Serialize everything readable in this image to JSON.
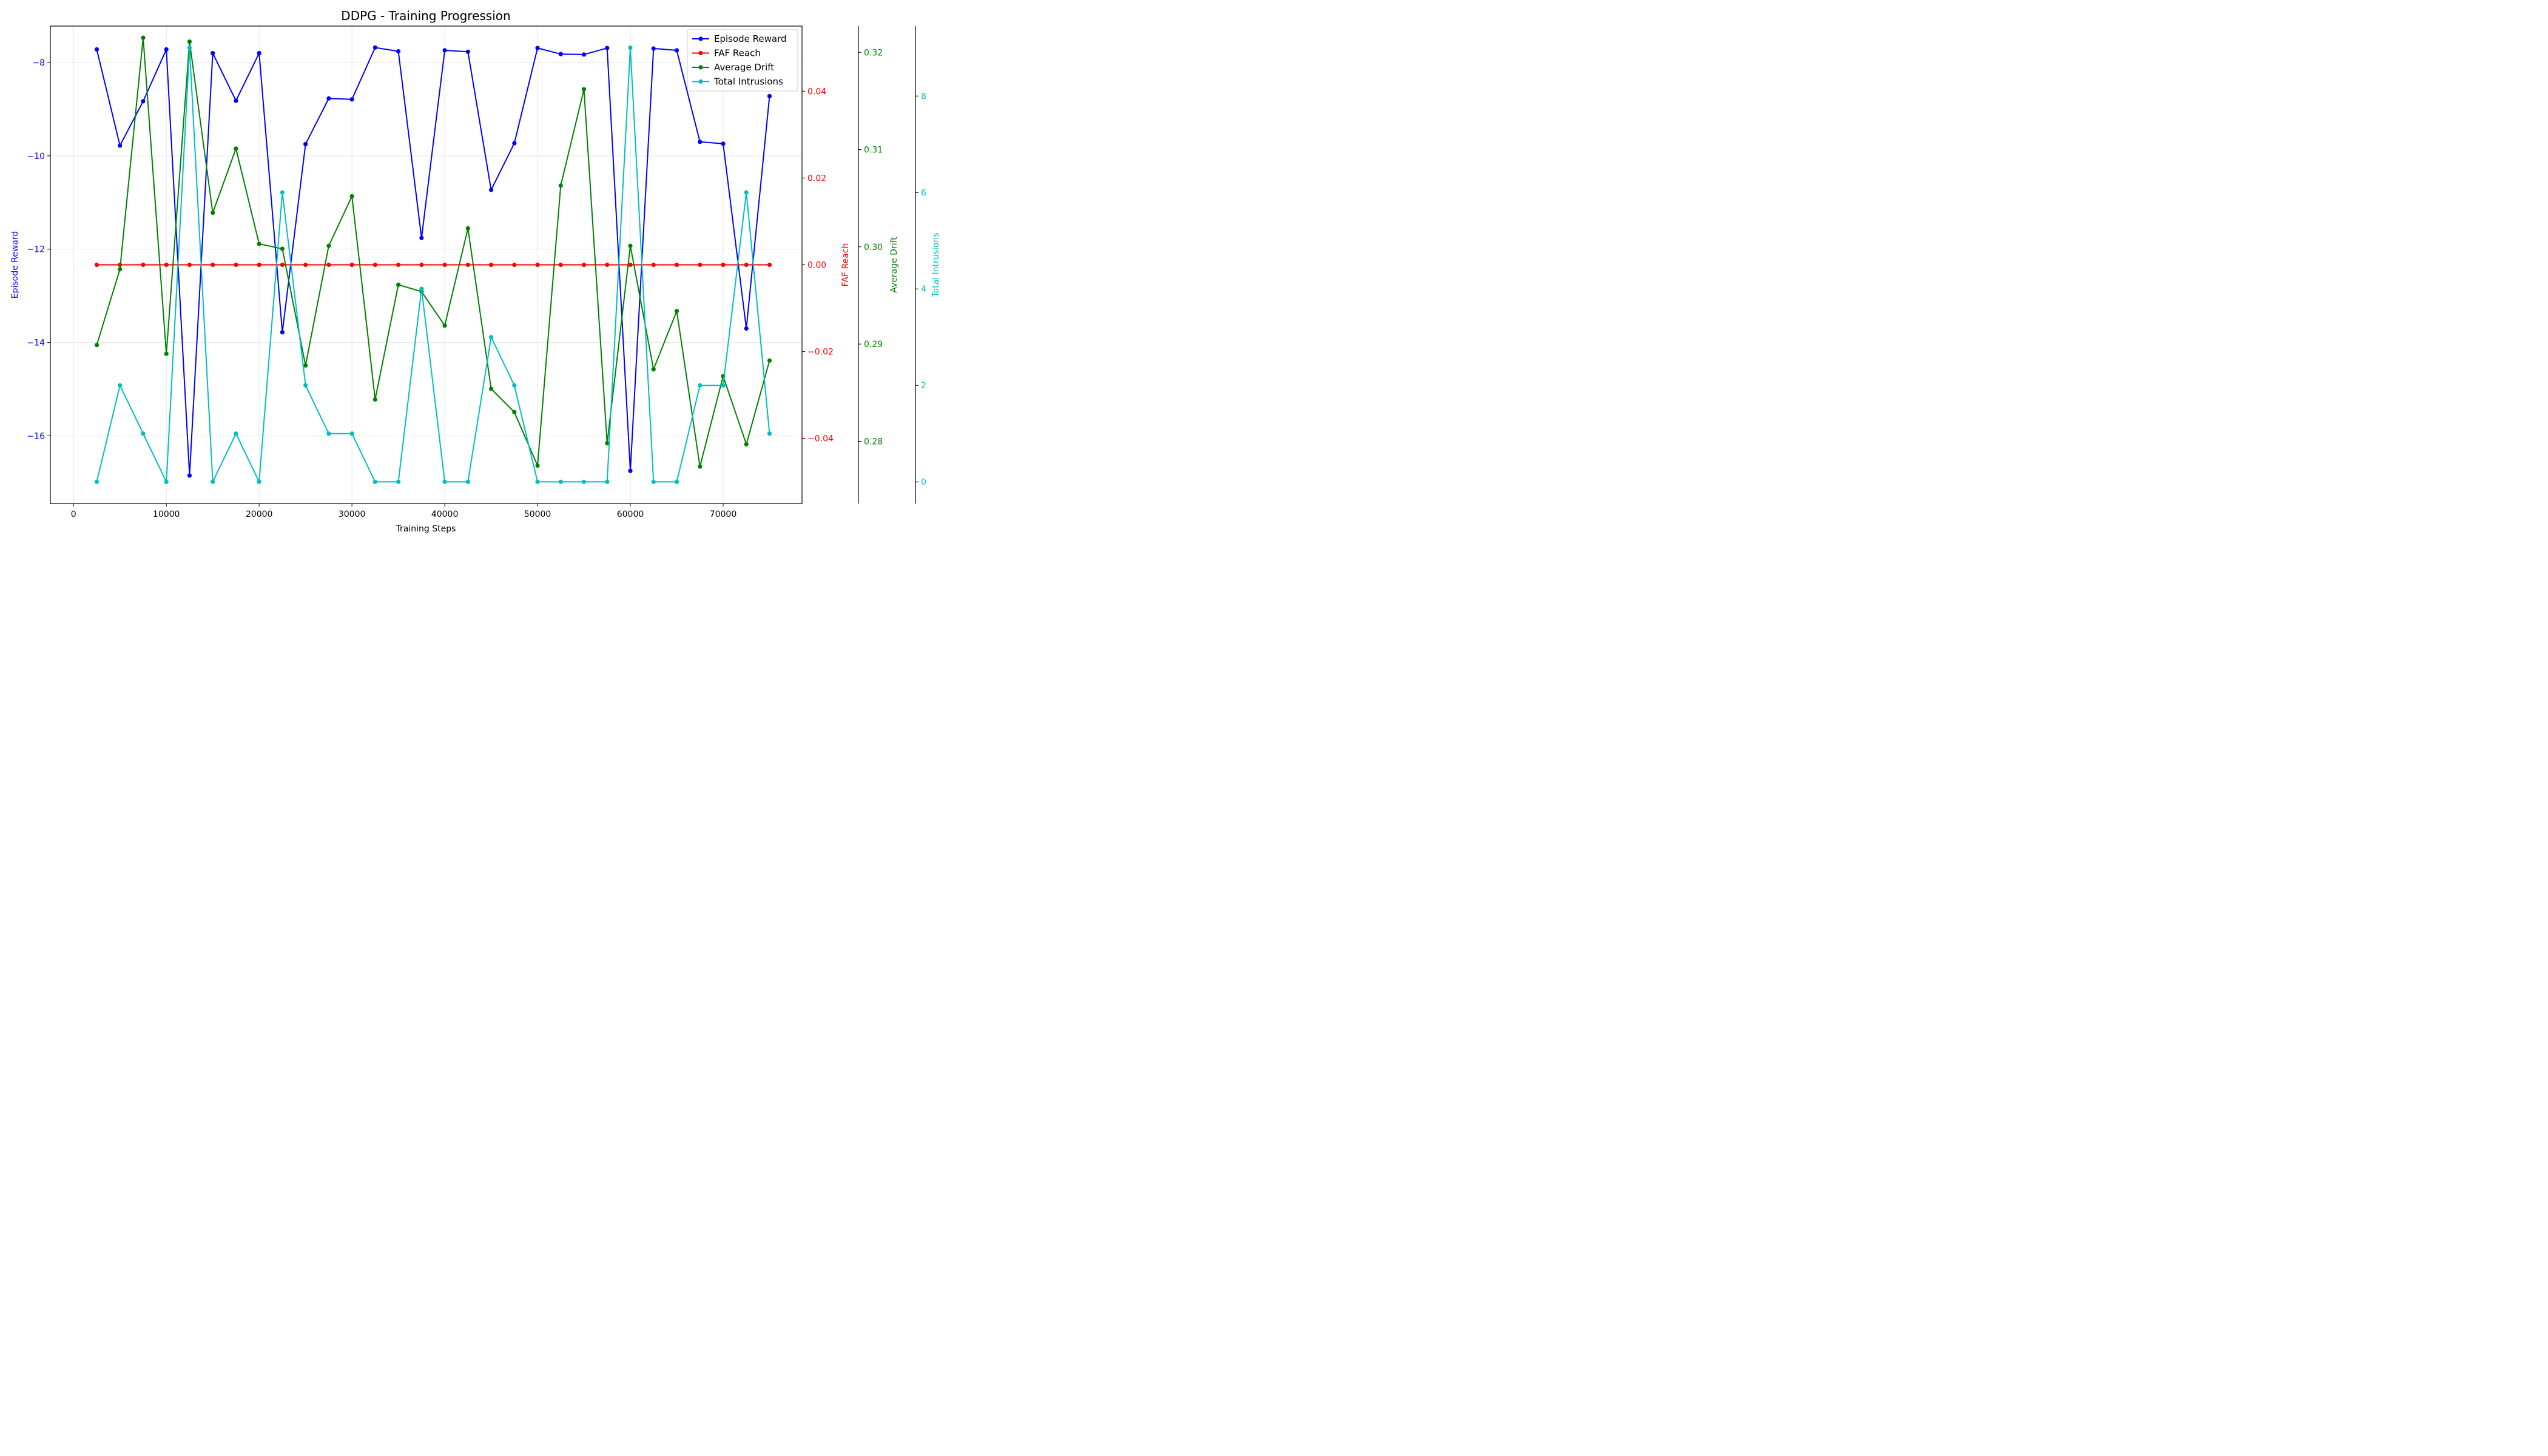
{
  "chart_data": {
    "type": "line",
    "title": "DDPG - Training Progression",
    "xlabel": "Training Steps",
    "xlim": [
      -2500,
      78500
    ],
    "xticks": [
      0,
      10000,
      20000,
      30000,
      40000,
      50000,
      60000,
      70000
    ],
    "grid": true,
    "legend_position": "top-right",
    "x": [
      2500,
      5000,
      7500,
      10000,
      12500,
      15000,
      17500,
      20000,
      22500,
      25000,
      27500,
      30000,
      32500,
      35000,
      37500,
      40000,
      42500,
      45000,
      47500,
      50000,
      52500,
      55000,
      57500,
      60000,
      62500,
      65000,
      67500,
      70000,
      72500,
      75000
    ],
    "series": [
      {
        "name": "Episode Reward",
        "color": "#0000ff",
        "axis": "Episode Reward",
        "ylim": [
          -17.45,
          -7.22
        ],
        "yticks": [
          -8,
          -10,
          -12,
          -14,
          -16
        ],
        "tick_labels": [
          "−8",
          "−10",
          "−12",
          "−14",
          "−16"
        ],
        "values": [
          -7.72,
          -9.78,
          -8.83,
          -7.72,
          -16.85,
          -7.8,
          -8.82,
          -7.8,
          -13.78,
          -9.75,
          -8.77,
          -8.79,
          -7.68,
          -7.76,
          -11.76,
          -7.74,
          -7.77,
          -10.73,
          -9.73,
          -7.69,
          -7.82,
          -7.83,
          -7.69,
          -16.75,
          -7.7,
          -7.74,
          -9.7,
          -9.74,
          -13.7,
          -8.72
        ]
      },
      {
        "name": "FAF Reach",
        "color": "#ff0000",
        "axis": "FAF Reach",
        "ylim": [
          -0.055,
          0.055
        ],
        "yticks": [
          0.04,
          0.02,
          0.0,
          -0.02,
          -0.04
        ],
        "tick_labels": [
          "0.04",
          "0.02",
          "0.00",
          "−0.02",
          "−0.04"
        ],
        "values": [
          0,
          0,
          0,
          0,
          0,
          0,
          0,
          0,
          0,
          0,
          0,
          0,
          0,
          0,
          0,
          0,
          0,
          0,
          0,
          0,
          0,
          0,
          0,
          0,
          0,
          0,
          0,
          0,
          0,
          0
        ]
      },
      {
        "name": "Average Drift",
        "color": "#008000",
        "axis": "Average Drift",
        "ylim": [
          0.2736,
          0.3227
        ],
        "yticks": [
          0.32,
          0.31,
          0.3,
          0.29,
          0.28
        ],
        "tick_labels": [
          "0.32",
          "0.31",
          "0.30",
          "0.29",
          "0.28"
        ],
        "values": [
          0.2899,
          0.2977,
          0.3215,
          0.289,
          0.3211,
          0.3035,
          0.3101,
          0.3003,
          0.2998,
          0.2878,
          0.3001,
          0.3052,
          0.2843,
          0.2961,
          0.2954,
          0.2919,
          0.3019,
          0.2854,
          0.283,
          0.2775,
          0.3063,
          0.3162,
          0.2798,
          0.3001,
          0.2874,
          0.2934,
          0.2774,
          0.2867,
          0.2797,
          0.2883
        ]
      },
      {
        "name": "Total Intrusions",
        "color": "#00bfbf",
        "axis": "Total Intrusions",
        "ylim": [
          -0.45,
          9.45
        ],
        "yticks": [
          8,
          6,
          4,
          2,
          0
        ],
        "tick_labels": [
          "8",
          "6",
          "4",
          "2",
          "0"
        ],
        "values": [
          0,
          2,
          1,
          0,
          9,
          0,
          1,
          0,
          6,
          2,
          1,
          1,
          0,
          0,
          4,
          0,
          0,
          3,
          2,
          0,
          0,
          0,
          0,
          9,
          0,
          0,
          2,
          2,
          6,
          1
        ]
      }
    ]
  }
}
